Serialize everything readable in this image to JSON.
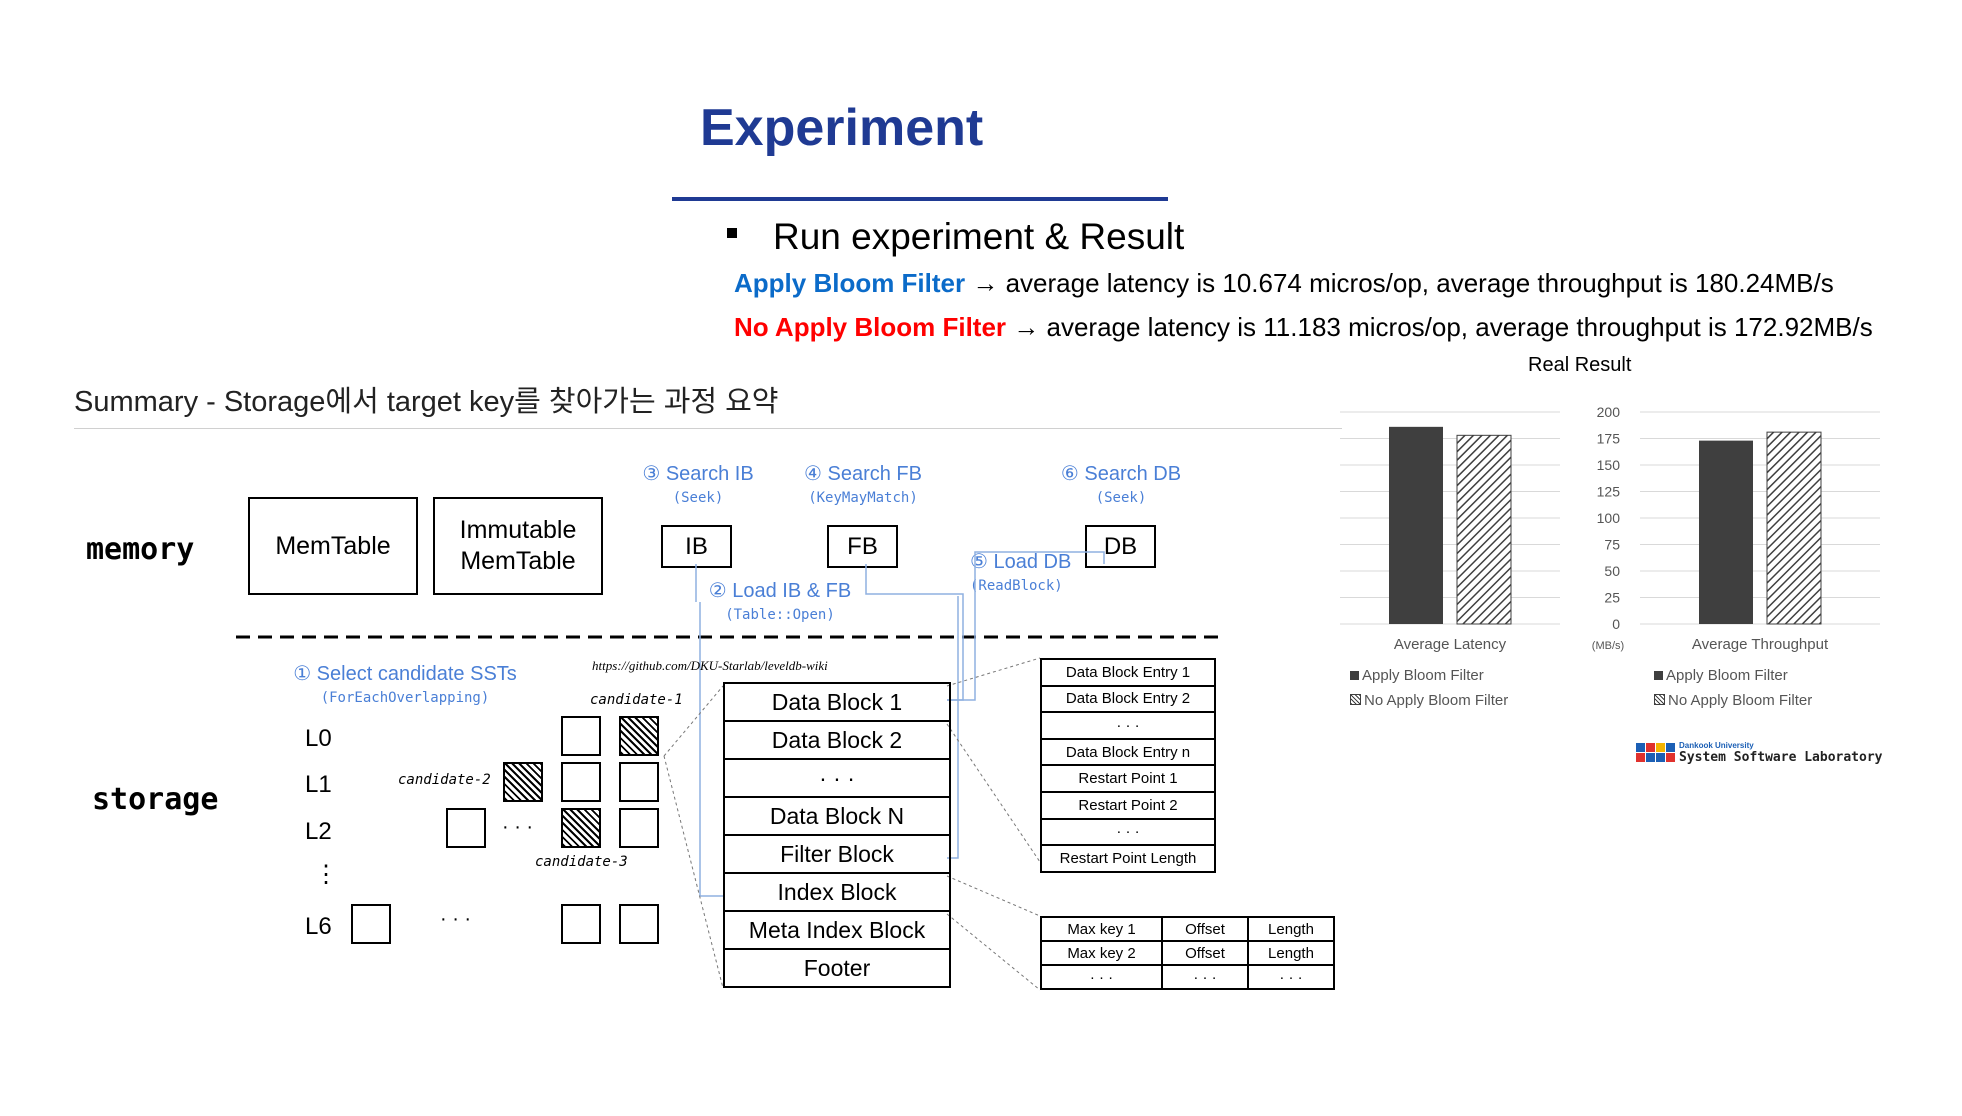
{
  "slide": {
    "title": "Experiment",
    "bullet": "Run experiment & Result",
    "result_lines": [
      {
        "label": "Apply Bloom Filter",
        "text": " → average latency is 10.674 micros/op, average throughput is 180.24MB/s"
      },
      {
        "label": "No Apply Bloom Filter",
        "text": " → average latency is 11.183 micros/op, average throughput is 172.92MB/s"
      }
    ]
  },
  "summary": {
    "heading": "Summary - Storage에서 target key를 찾아가는 과정 요약",
    "memory_label": "memory",
    "storage_label": "storage",
    "memtable": "MemTable",
    "immutable_memtable_line1": "Immutable",
    "immutable_memtable_line2": "MemTable",
    "ib": "IB",
    "fb": "FB",
    "db": "DB",
    "steps": {
      "s1": {
        "title": "① Select candidate SSTs",
        "sub": "(ForEachOverlapping)"
      },
      "s2": {
        "title": "② Load IB & FB",
        "sub": "(Table::Open)"
      },
      "s3": {
        "title": "③ Search IB",
        "sub": "(Seek)"
      },
      "s4": {
        "title": "④ Search FB",
        "sub": "(KeyMayMatch)"
      },
      "s5": {
        "title": "⑤ Load DB",
        "sub": "(ReadBlock)"
      },
      "s6": {
        "title": "⑥ Search DB",
        "sub": "(Seek)"
      }
    },
    "levels": [
      "L0",
      "L1",
      "L2",
      "⋮",
      "L6"
    ],
    "dots": "· · ·",
    "candidates": [
      "candidate-1",
      "candidate-2",
      "candidate-3"
    ],
    "url": "https://github.com/DKU-Starlab/leveldb-wiki",
    "sst_blocks": [
      "Data Block 1",
      "Data Block 2",
      "· · ·",
      "Data Block N",
      "Filter Block",
      "Index Block",
      "Meta Index Block",
      "Footer"
    ],
    "data_block_detail": [
      "Data Block Entry 1",
      "Data Block Entry 2",
      "· · ·",
      "Data Block Entry n",
      "Restart Point 1",
      "Restart Point 2",
      "· · ·",
      "Restart Point Length"
    ],
    "index_table": [
      [
        "Max key 1",
        "Offset",
        "Length"
      ],
      [
        "Max key 2",
        "Offset",
        "Length"
      ],
      [
        "· · ·",
        "· · ·",
        "· · ·"
      ]
    ]
  },
  "chart_data": {
    "title": "Real Result",
    "type": "bar",
    "unit_label": "(MB/s)",
    "ylim": [
      0,
      200
    ],
    "yticks": [
      0,
      25,
      50,
      75,
      100,
      125,
      150,
      175,
      200
    ],
    "categories": [
      "Average Latency",
      "Average Throughput"
    ],
    "series": [
      {
        "name": "Apply Bloom Filter",
        "values": [
          186,
          173
        ],
        "color": "#3f3f3f",
        "pattern": "solid"
      },
      {
        "name": "No Apply Bloom Filter",
        "values": [
          178,
          181
        ],
        "color": "#3f3f3f",
        "pattern": "hatched"
      }
    ],
    "grid": true,
    "legend": "bottom"
  },
  "logo": {
    "line1": "Dankook University",
    "line2": "System Software Laboratory"
  }
}
